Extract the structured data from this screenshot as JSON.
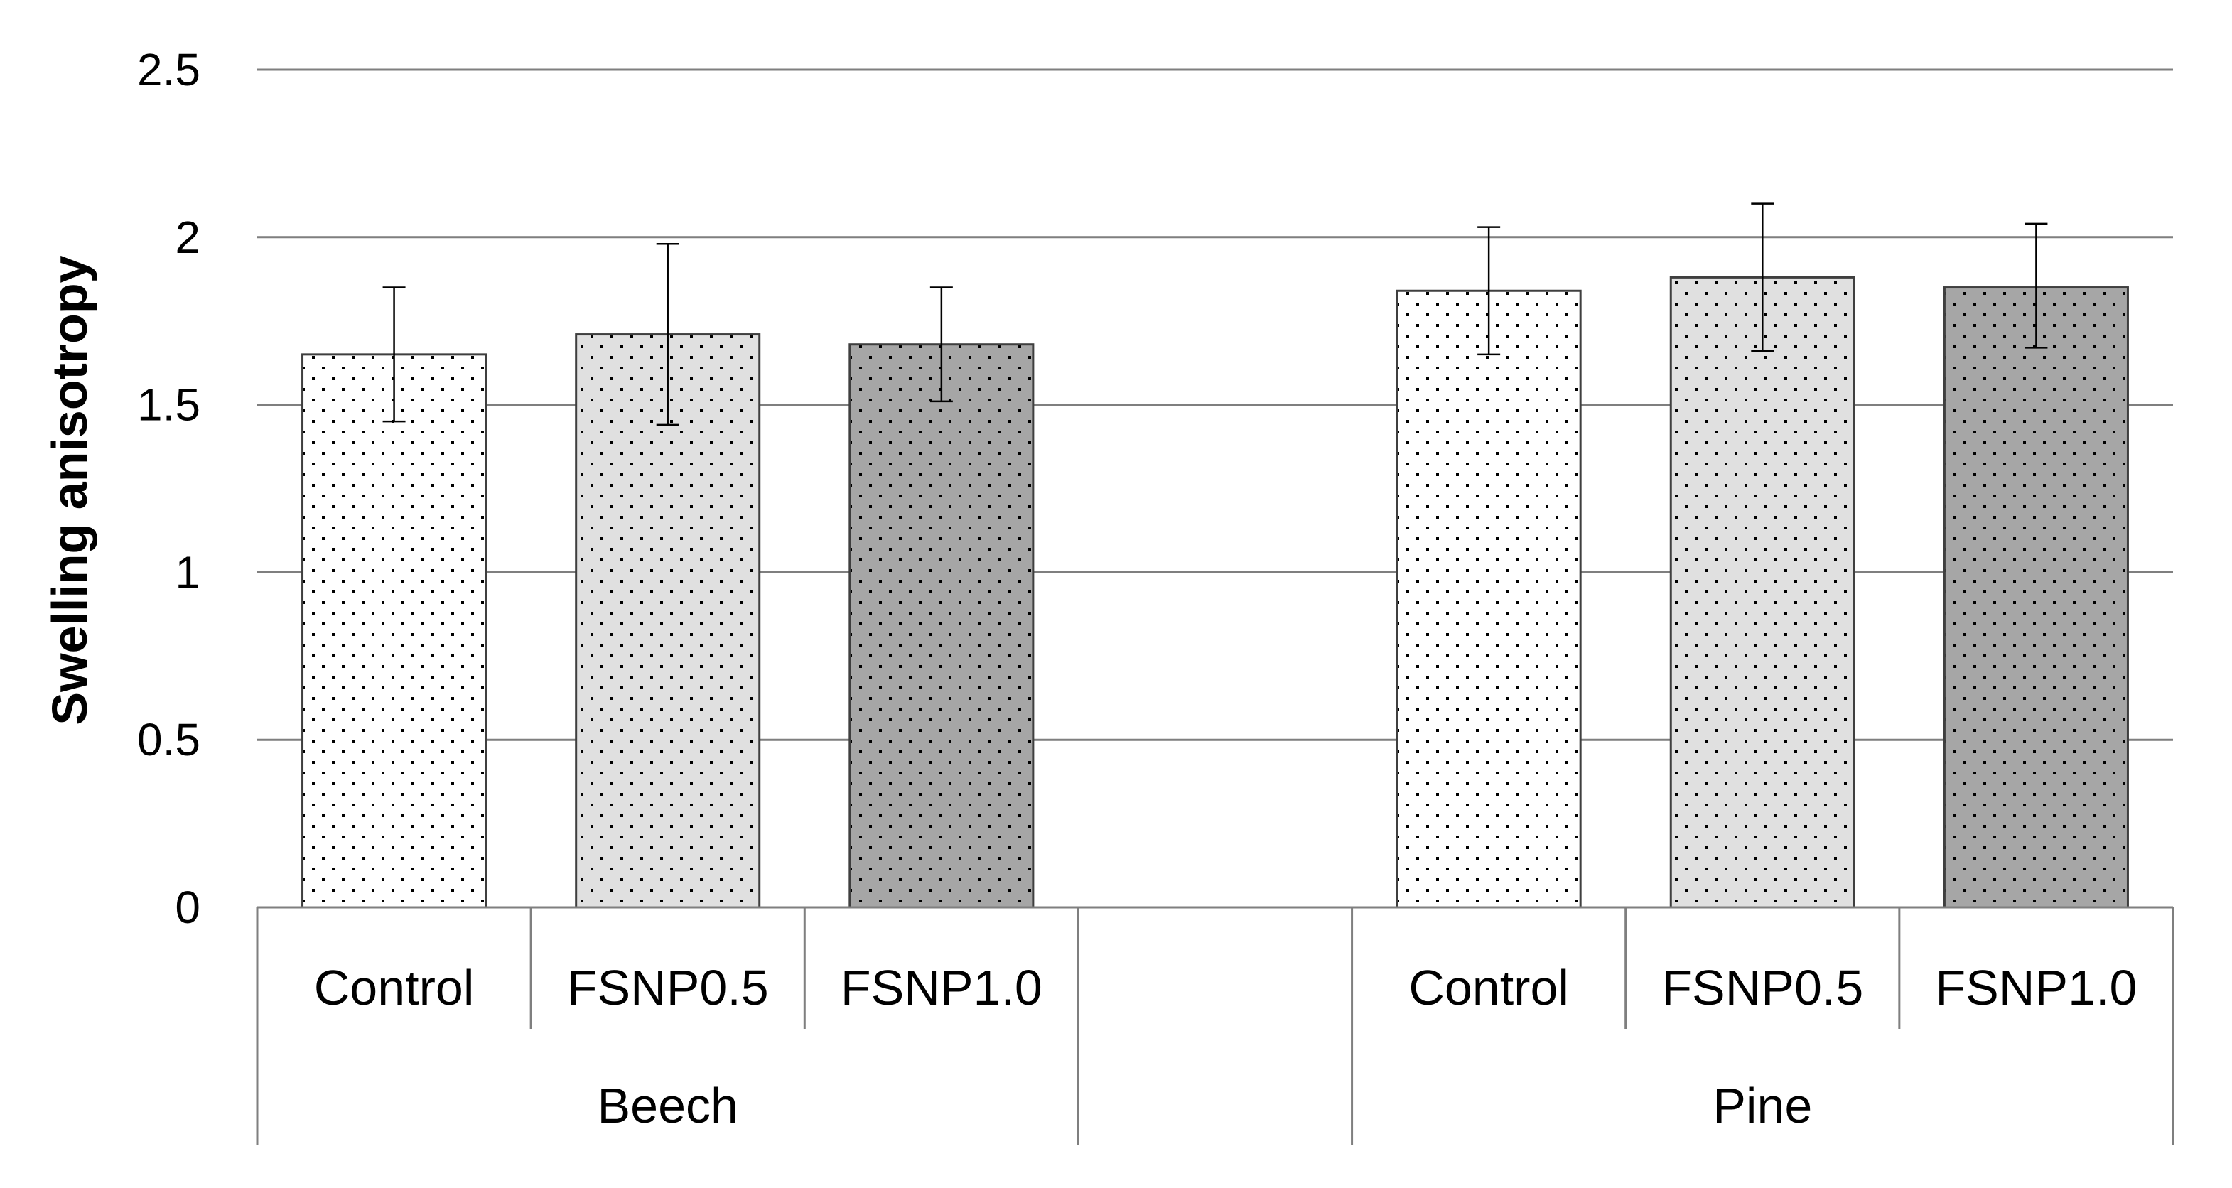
{
  "chart_data": {
    "type": "bar",
    "title": "",
    "xlabel": "",
    "ylabel": "Swelling anisotropy",
    "ylim": [
      0,
      2.5
    ],
    "yticks": [
      0,
      0.5,
      1,
      1.5,
      2,
      2.5
    ],
    "ytick_labels": [
      "0",
      "0.5",
      "1",
      "1.5",
      "2",
      "2.5"
    ],
    "grid": true,
    "legend": "none",
    "groups": [
      {
        "name": "Beech",
        "categories": [
          "Control",
          "FSNP0.5",
          "FSNP1.0"
        ],
        "values": [
          1.65,
          1.71,
          1.68
        ],
        "error_low": [
          1.45,
          1.44,
          1.51
        ],
        "error_high": [
          1.85,
          1.98,
          1.85
        ],
        "fills": [
          "#ffffff",
          "#e0e0e0",
          "#a6a6a6"
        ]
      },
      {
        "name": "",
        "categories": [
          ""
        ],
        "values": [
          null
        ],
        "error_low": [
          null
        ],
        "error_high": [
          null
        ],
        "fills": [
          "none"
        ]
      },
      {
        "name": "Pine",
        "categories": [
          "Control",
          "FSNP0.5",
          "FSNP1.0"
        ],
        "values": [
          1.84,
          1.88,
          1.85
        ],
        "error_low": [
          1.65,
          1.66,
          1.67
        ],
        "error_high": [
          2.03,
          2.1,
          2.04
        ],
        "fills": [
          "#ffffff",
          "#e0e0e0",
          "#a6a6a6"
        ]
      }
    ]
  }
}
